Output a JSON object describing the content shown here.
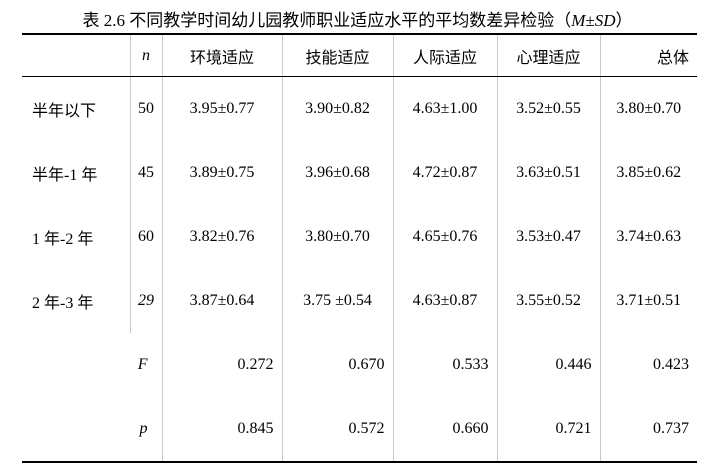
{
  "title": {
    "text": "表 2.6 不同教学时间幼儿园教师职业适应水平的平均数差异检验（",
    "italic": "M±SD",
    "close": "）"
  },
  "table": {
    "header": {
      "n": "n",
      "columns": [
        "环境适应",
        "技能适应",
        "人际适应",
        "心理适应",
        "总体"
      ]
    },
    "rows": [
      {
        "label": "半年以下",
        "n": "50",
        "values": [
          "3.95±0.77",
          "3.90±0.82",
          "4.63±1.00",
          "3.52±0.55",
          "3.80±0.70"
        ]
      },
      {
        "label": "半年-1 年",
        "n": "45",
        "values": [
          "3.89±0.75",
          "3.96±0.68",
          "4.72±0.87",
          "3.63±0.51",
          "3.85±0.62"
        ]
      },
      {
        "label": "1 年-2 年",
        "n": "60",
        "values": [
          "3.82±0.76",
          "3.80±0.70",
          "4.65±0.76",
          "3.53±0.47",
          "3.74±0.63"
        ]
      },
      {
        "label": "2 年-3 年",
        "n": "29",
        "values": [
          "3.87±0.64",
          "3.75 ±0.54",
          "4.63±0.87",
          "3.55±0.52",
          "3.71±0.51"
        ]
      }
    ],
    "stats": [
      {
        "label": "F",
        "values": [
          "0.272",
          "0.670",
          "0.533",
          "0.446",
          "0.423"
        ]
      },
      {
        "label": "p",
        "values": [
          "0.845",
          "0.572",
          "0.660",
          "0.721",
          "0.737"
        ]
      }
    ]
  }
}
